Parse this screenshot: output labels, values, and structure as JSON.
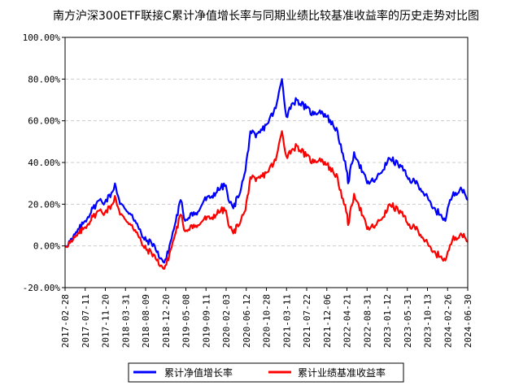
{
  "chart_data": {
    "type": "line",
    "title": "南方沪深300ETF联接C累计净值增长率与同期业绩比较基准收益率的历史走势对比图",
    "xlabel": "",
    "ylabel": "",
    "ylim": [
      -20,
      100
    ],
    "yticks": [
      -20,
      0,
      20,
      40,
      60,
      80,
      100
    ],
    "ytick_labels": [
      "-20.00%",
      "0.00%",
      "20.00%",
      "40.00%",
      "60.00%",
      "80.00%",
      "100.00%"
    ],
    "x_start": "2017-02-28",
    "x_end": "2024-06-30",
    "x_tick_labels": [
      "2017-02-28",
      "2017-07-11",
      "2017-11-20",
      "2018-03-31",
      "2018-08-09",
      "2018-12-20",
      "2019-05-08",
      "2019-09-11",
      "2020-02-03",
      "2020-06-12",
      "2020-10-28",
      "2021-03-11",
      "2021-07-22",
      "2021-12-06",
      "2022-04-21",
      "2022-08-31",
      "2023-01-12",
      "2023-05-31",
      "2023-10-13",
      "2024-02-26",
      "2024-06-30"
    ],
    "grid": true,
    "legend_position": "bottom",
    "series": [
      {
        "name": "累计净值增长率",
        "color": "#0000ff",
        "x": [
          "2017-02-28",
          "2017-04-15",
          "2017-06-01",
          "2017-07-11",
          "2017-09-01",
          "2017-10-15",
          "2017-11-20",
          "2018-01-10",
          "2018-01-26",
          "2018-03-01",
          "2018-03-31",
          "2018-05-20",
          "2018-07-05",
          "2018-08-09",
          "2018-10-10",
          "2018-10-31",
          "2018-12-20",
          "2019-01-03",
          "2019-02-28",
          "2019-04-08",
          "2019-05-08",
          "2019-06-20",
          "2019-07-25",
          "2019-09-11",
          "2019-10-20",
          "2019-12-31",
          "2020-02-03",
          "2020-02-20",
          "2020-03-23",
          "2020-05-15",
          "2020-06-12",
          "2020-07-15",
          "2020-08-20",
          "2020-10-28",
          "2020-12-31",
          "2021-02-10",
          "2021-03-11",
          "2021-04-15",
          "2021-05-20",
          "2021-07-22",
          "2021-09-10",
          "2021-10-20",
          "2021-12-06",
          "2022-02-15",
          "2022-03-15",
          "2022-04-21",
          "2022-04-26",
          "2022-06-05",
          "2022-07-05",
          "2022-08-31",
          "2022-10-31",
          "2023-01-12",
          "2023-01-28",
          "2023-04-15",
          "2023-05-31",
          "2023-08-01",
          "2023-10-13",
          "2023-11-10",
          "2024-01-05",
          "2024-02-02",
          "2024-02-26",
          "2024-03-20",
          "2024-05-15",
          "2024-06-30"
        ],
        "values": [
          0,
          3,
          8,
          12,
          18,
          22,
          21,
          26,
          30,
          20,
          18,
          15,
          8,
          3,
          1,
          -3,
          -8,
          -6,
          10,
          22,
          12,
          16,
          15,
          22,
          23,
          28,
          29,
          22,
          18,
          28,
          36,
          55,
          52,
          58,
          66,
          80,
          62,
          68,
          70,
          66,
          63,
          65,
          62,
          55,
          45,
          35,
          30,
          45,
          40,
          30,
          32,
          40,
          42,
          38,
          32,
          30,
          22,
          18,
          15,
          12,
          20,
          24,
          28,
          22
        ]
      },
      {
        "name": "累计业绩基准收益率",
        "color": "#ff0000",
        "x": [
          "2017-02-28",
          "2017-04-15",
          "2017-06-01",
          "2017-07-11",
          "2017-09-01",
          "2017-10-15",
          "2017-11-20",
          "2018-01-10",
          "2018-01-26",
          "2018-03-01",
          "2018-03-31",
          "2018-05-20",
          "2018-07-05",
          "2018-08-09",
          "2018-10-10",
          "2018-10-31",
          "2018-12-20",
          "2019-01-03",
          "2019-02-28",
          "2019-04-08",
          "2019-05-08",
          "2019-06-20",
          "2019-07-25",
          "2019-09-11",
          "2019-10-20",
          "2019-12-31",
          "2020-02-03",
          "2020-02-20",
          "2020-03-23",
          "2020-05-15",
          "2020-06-12",
          "2020-07-15",
          "2020-08-20",
          "2020-10-28",
          "2020-12-31",
          "2021-02-10",
          "2021-03-11",
          "2021-04-15",
          "2021-05-20",
          "2021-07-22",
          "2021-09-10",
          "2021-10-20",
          "2021-12-06",
          "2022-02-15",
          "2022-03-15",
          "2022-04-21",
          "2022-04-26",
          "2022-06-05",
          "2022-07-05",
          "2022-08-31",
          "2022-10-31",
          "2023-01-12",
          "2023-01-28",
          "2023-04-15",
          "2023-05-31",
          "2023-08-01",
          "2023-10-13",
          "2023-11-10",
          "2024-01-05",
          "2024-02-02",
          "2024-02-26",
          "2024-03-20",
          "2024-05-15",
          "2024-06-30"
        ],
        "values": [
          0,
          2,
          6,
          9,
          14,
          17,
          16,
          20,
          24,
          15,
          13,
          10,
          4,
          -1,
          -4,
          -7,
          -11,
          -9,
          5,
          15,
          7,
          10,
          9,
          13,
          13,
          17,
          17,
          10,
          6,
          13,
          17,
          33,
          31,
          35,
          41,
          55,
          43,
          46,
          48,
          43,
          40,
          42,
          39,
          33,
          23,
          15,
          10,
          25,
          20,
          8,
          10,
          17,
          20,
          16,
          10,
          8,
          0,
          -3,
          -5,
          -7,
          -2,
          3,
          6,
          2
        ]
      }
    ]
  }
}
